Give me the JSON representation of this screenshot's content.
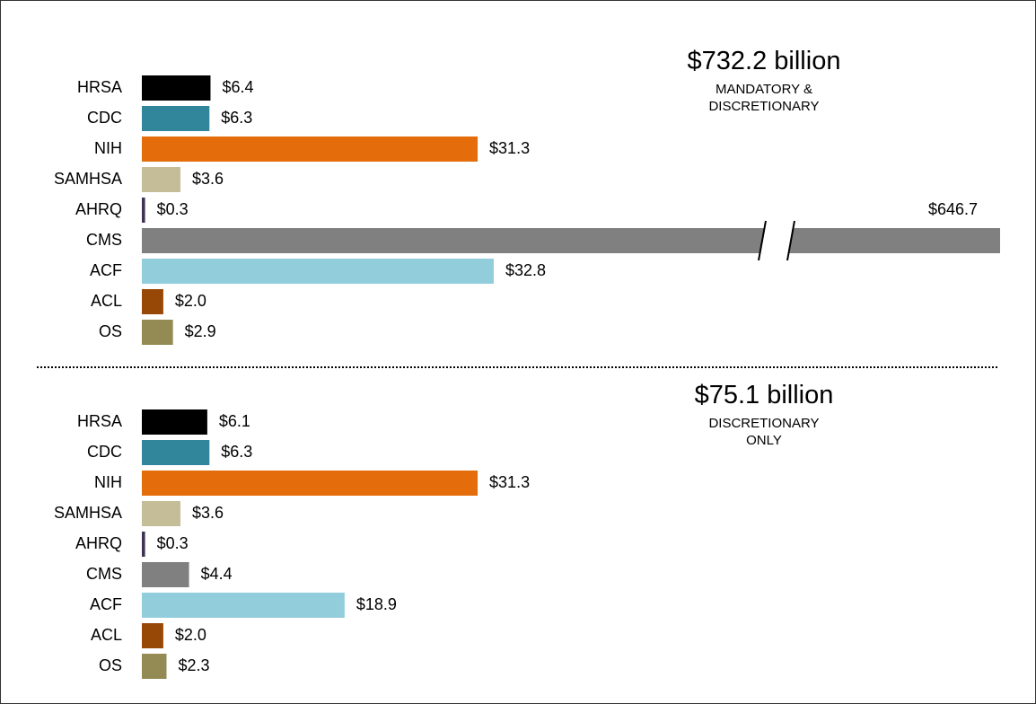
{
  "chart_data": [
    {
      "type": "bar",
      "orientation": "horizontal",
      "title": "$732.2 billion",
      "subtitle": "MANDATORY & DISCRETIONARY",
      "categories": [
        "HRSA",
        "CDC",
        "NIH",
        "SAMHSA",
        "AHRQ",
        "CMS",
        "ACF",
        "ACL",
        "OS"
      ],
      "values": [
        6.4,
        6.3,
        31.3,
        3.6,
        0.3,
        646.7,
        32.8,
        2.0,
        2.9
      ],
      "value_labels": [
        "$6.4",
        "$6.3",
        "$31.3",
        "$3.6",
        "$0.3",
        "$646.7",
        "$32.8",
        "$2.0",
        "$2.9"
      ],
      "colors": [
        "#000000",
        "#31869b",
        "#e46c0a",
        "#c4bd97",
        "#403152",
        "#808080",
        "#92cddc",
        "#974706",
        "#948a54"
      ],
      "xlim": [
        0,
        80
      ]
    },
    {
      "type": "bar",
      "orientation": "horizontal",
      "title": "$75.1 billion",
      "subtitle": "DISCRETIONARY ONLY",
      "categories": [
        "HRSA",
        "CDC",
        "NIH",
        "SAMHSA",
        "AHRQ",
        "CMS",
        "ACF",
        "ACL",
        "OS"
      ],
      "values": [
        6.1,
        6.3,
        31.3,
        3.6,
        0.3,
        4.4,
        18.9,
        2.0,
        2.3
      ],
      "value_labels": [
        "$6.1",
        "$6.3",
        "$31.3",
        "$3.6",
        "$0.3",
        "$4.4",
        "$18.9",
        "$2.0",
        "$2.3"
      ],
      "colors": [
        "#000000",
        "#31869b",
        "#e46c0a",
        "#c4bd97",
        "#403152",
        "#808080",
        "#92cddc",
        "#974706",
        "#948a54"
      ],
      "xlim": [
        0,
        80
      ]
    }
  ]
}
